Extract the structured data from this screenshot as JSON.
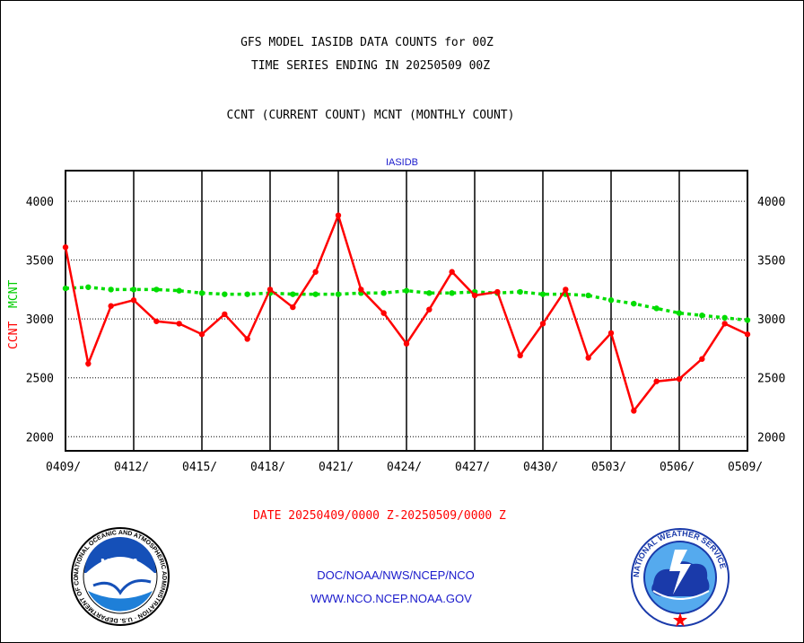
{
  "header": {
    "title_line1": "GFS MODEL IASIDB DATA COUNTS for 00Z",
    "title_line2": "TIME SERIES ENDING IN 20250509 00Z",
    "subtitle": "CCNT (CURRENT COUNT) MCNT (MONTHLY COUNT)",
    "plot_label": "IASIDB"
  },
  "axis": {
    "ylabel_ccnt": "CCNT",
    "ylabel_mcnt": "MCNT",
    "date_range": "DATE 20250409/0000 Z-20250509/0000 Z"
  },
  "footer": {
    "line1": "DOC/NOAA/NWS/NCEP/NCO",
    "line2": "WWW.NCO.NCEP.NOAA.GOV",
    "noaa_logo_text": "NOAA",
    "noaa_seal_text": "NATIONAL OCEANIC AND ATMOSPHERIC ADMINISTRATION · U.S. DEPARTMENT OF COMMERCE",
    "nws_seal_text": "NATIONAL WEATHER SERVICE"
  },
  "colors": {
    "ccnt": "#ff0000",
    "mcnt": "#00dd00",
    "grid": "#000000",
    "footer_text": "#1a1acc"
  },
  "chart_data": {
    "type": "line",
    "title": "GFS MODEL IASIDB DATA COUNTS for 00Z",
    "grid": true,
    "ylim": [
      1880,
      4260
    ],
    "yticks": [
      2000,
      2500,
      3000,
      3500,
      4000
    ],
    "ytick_labels": [
      "2000",
      "2500",
      "3000",
      "3500",
      "4000"
    ],
    "xtick_labels": [
      "0409/",
      "0412/",
      "0415/",
      "0418/",
      "0421/",
      "0424/",
      "0427/",
      "0430/",
      "0503/",
      "0506/",
      "0509/"
    ],
    "x": [
      "0409",
      "0410",
      "0411",
      "0412",
      "0413",
      "0414",
      "0415",
      "0416",
      "0417",
      "0418",
      "0419",
      "0420",
      "0421",
      "0422",
      "0423",
      "0424",
      "0425",
      "0426",
      "0427",
      "0428",
      "0429",
      "0430",
      "0501",
      "0502",
      "0503",
      "0504",
      "0505",
      "0506",
      "0507",
      "0508",
      "0509"
    ],
    "series": [
      {
        "name": "CCNT",
        "values": [
          3610,
          2620,
          3110,
          3160,
          2980,
          2960,
          2870,
          3040,
          2830,
          3250,
          3100,
          3400,
          3880,
          3250,
          3050,
          2790,
          3080,
          3400,
          3200,
          3230,
          2690,
          2960,
          3250,
          2670,
          2880,
          2220,
          2470,
          2490,
          2660,
          2960,
          2870
        ]
      },
      {
        "name": "MCNT",
        "values": [
          3260,
          3270,
          3250,
          3250,
          3250,
          3240,
          3220,
          3210,
          3210,
          3220,
          3210,
          3210,
          3210,
          3220,
          3220,
          3240,
          3220,
          3220,
          3230,
          3220,
          3230,
          3210,
          3210,
          3200,
          3160,
          3130,
          3090,
          3050,
          3030,
          3010,
          2990
        ]
      }
    ]
  }
}
